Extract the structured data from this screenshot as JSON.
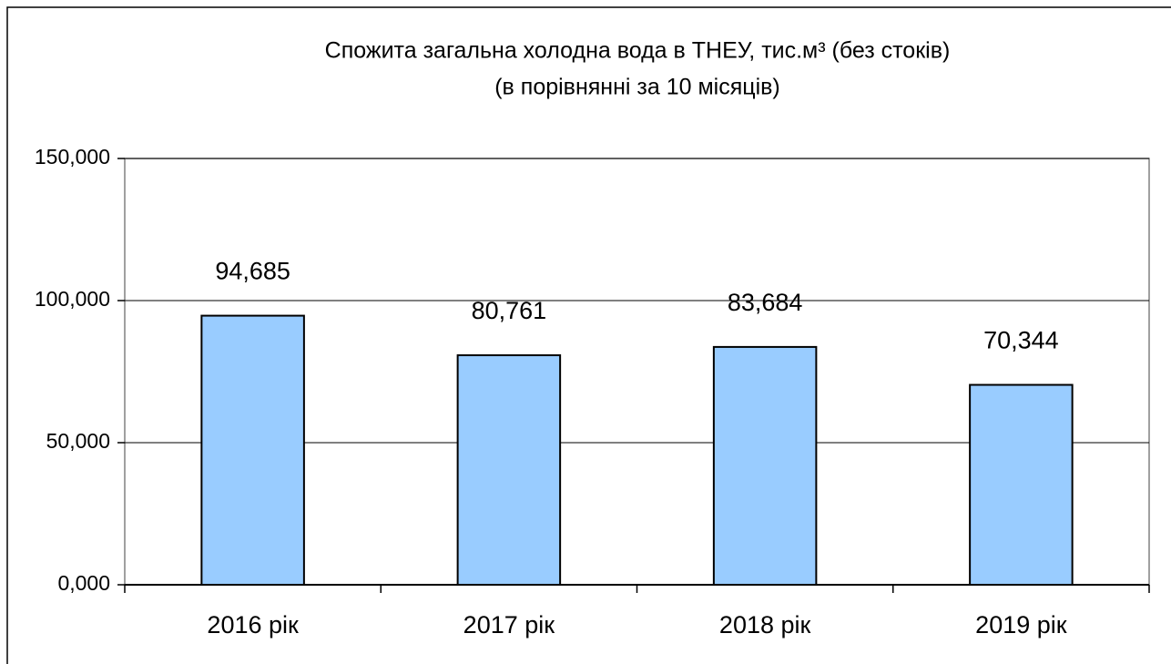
{
  "chart_data": {
    "type": "bar",
    "title": "Спожита загальна холодна вода в ТНЕУ, тис.м³ (без стоків)",
    "subtitle": "(в порівнянні за 10 місяців)",
    "categories": [
      "2016 рік",
      "2017 рік",
      "2018 рік",
      "2019 рік"
    ],
    "values": [
      94.685,
      80.761,
      83.684,
      70.344
    ],
    "value_labels": [
      "94,685",
      "80,761",
      "83,684",
      "70,344"
    ],
    "color": "#99ccff",
    "ylim": [
      0,
      150
    ],
    "yticks": [
      {
        "value": 0,
        "label": "0,000"
      },
      {
        "value": 50,
        "label": "50,000"
      },
      {
        "value": 100,
        "label": "100,000"
      },
      {
        "value": 150,
        "label": "150,000"
      }
    ],
    "grid": true
  }
}
